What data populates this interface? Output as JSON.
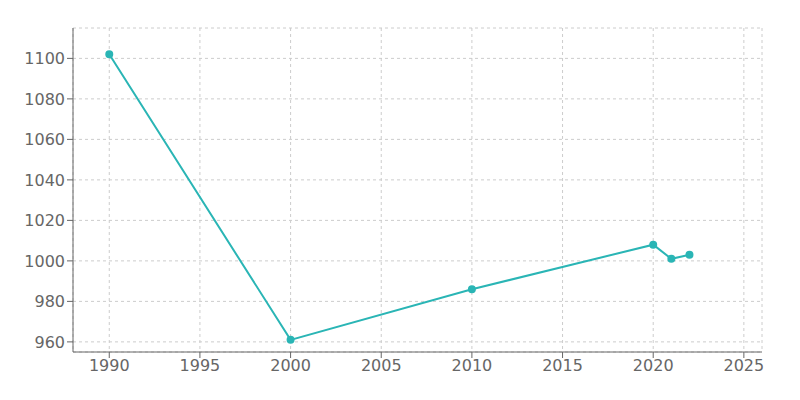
{
  "chart_data": {
    "type": "line",
    "x": [
      1990,
      2000,
      2010,
      2020,
      2021,
      2022
    ],
    "values": [
      1102,
      961,
      986,
      1008,
      1001,
      1003
    ],
    "color": "#2ab5b5",
    "marker": "circle",
    "xlim": [
      1988,
      2026
    ],
    "ylim": [
      955,
      1115
    ],
    "xticks": [
      1990,
      1995,
      2000,
      2005,
      2010,
      2015,
      2020,
      2025
    ],
    "yticks": [
      960,
      980,
      1000,
      1020,
      1040,
      1060,
      1080,
      1100
    ],
    "grid": true
  }
}
